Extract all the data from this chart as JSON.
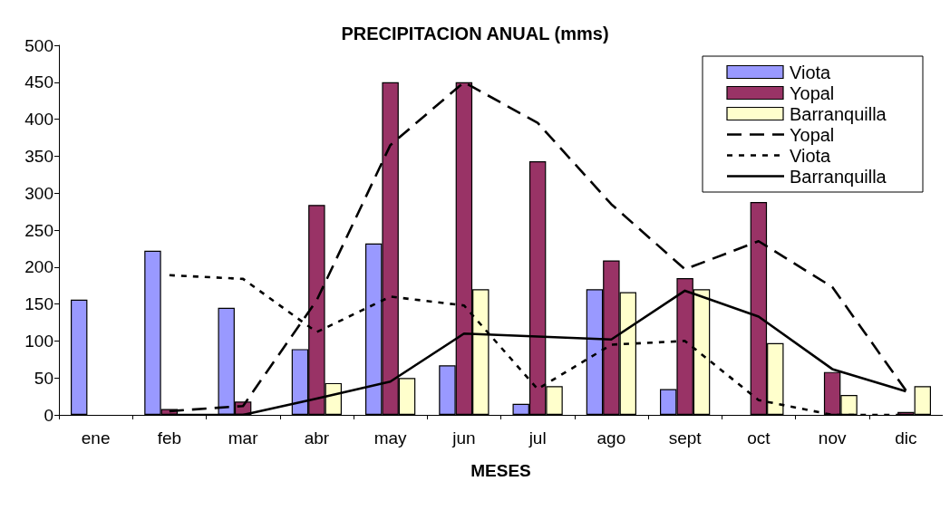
{
  "chart_data": {
    "type": "bar",
    "title": "PRECIPITACION ANUAL (mms)",
    "xlabel": "MESES",
    "categories": [
      "ene",
      "feb",
      "mar",
      "abr",
      "may",
      "jun",
      "jul",
      "ago",
      "sept",
      "oct",
      "nov",
      "dic"
    ],
    "series": [
      {
        "name": "Viota",
        "color": "#9999ff",
        "values": [
          156,
          222,
          145,
          89,
          232,
          67,
          15,
          170,
          35,
          0,
          0,
          0
        ]
      },
      {
        "name": "Yopal",
        "color": "#993366",
        "values": [
          0,
          8,
          18,
          284,
          450,
          450,
          343,
          209,
          185,
          288,
          58,
          4
        ]
      },
      {
        "name": "Barranquilla",
        "color": "#ffffcc",
        "values": [
          0,
          0,
          0,
          43,
          50,
          170,
          39,
          166,
          170,
          97,
          27,
          39
        ]
      },
      {
        "name": "Yopal",
        "type": "line",
        "color": "#000000",
        "line_style": "dashed",
        "values": [
          null,
          5,
          12,
          155,
          365,
          450,
          395,
          285,
          197,
          235,
          173,
          33
        ]
      },
      {
        "name": "Viota",
        "type": "line",
        "color": "#000000",
        "line_style": "dotted",
        "values": [
          null,
          189,
          184,
          112,
          160,
          148,
          35,
          95,
          100,
          20,
          0,
          0
        ]
      },
      {
        "name": "Barranquilla",
        "type": "line",
        "color": "#000000",
        "line_style": "solid",
        "values": [
          null,
          0,
          0,
          22,
          45,
          110,
          106,
          102,
          168,
          133,
          62,
          32
        ]
      }
    ],
    "ylim": [
      0,
      500
    ],
    "yticks": [
      0,
      50,
      100,
      150,
      200,
      250,
      300,
      350,
      400,
      450,
      500
    ],
    "grid": false,
    "legend": "top right",
    "marker": "none"
  }
}
